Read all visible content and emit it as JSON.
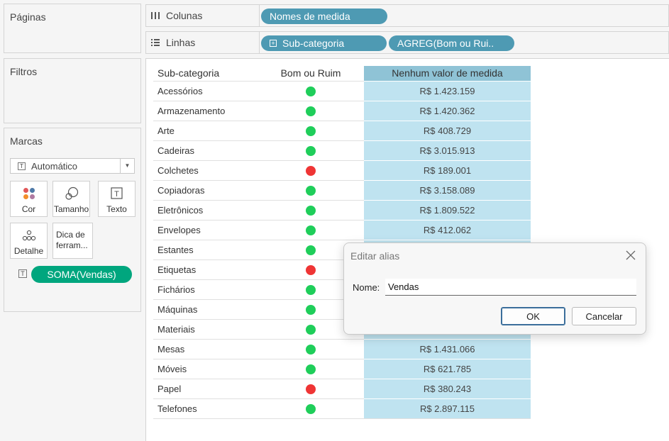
{
  "panels": {
    "pages_title": "Páginas",
    "filters_title": "Filtros",
    "marks_title": "Marcas"
  },
  "shelves": {
    "columns_label": "Colunas",
    "columns_pills": [
      "Nomes de medida"
    ],
    "rows_label": "Linhas",
    "rows_pills": [
      "Sub-categoria",
      "AGREG(Bom ou Rui.."
    ]
  },
  "marks": {
    "mark_type": "Automático",
    "buttons": {
      "color": "Cor",
      "size": "Tamanho",
      "text": "Texto",
      "detail": "Detalhe",
      "tooltip": "Dica de ferram..."
    },
    "measure_pill": "SOMA(Vendas)"
  },
  "colors": {
    "pill_blue": "#4e9ab3",
    "pill_green": "#00a67e",
    "good": "#1fce5a",
    "bad": "#ef3535",
    "value_cell": "#bfe3f0",
    "value_header": "#8fc3d6"
  },
  "table": {
    "headers": [
      "Sub-categoria",
      "Bom ou Ruim",
      "Nenhum valor de medida"
    ],
    "rows": [
      {
        "cat": "Acessórios",
        "status": "good",
        "value": "R$ 1.423.159"
      },
      {
        "cat": "Armazenamento",
        "status": "good",
        "value": "R$ 1.420.362"
      },
      {
        "cat": "Arte",
        "status": "good",
        "value": "R$ 408.729"
      },
      {
        "cat": "Cadeiras",
        "status": "good",
        "value": "R$ 3.015.913"
      },
      {
        "cat": "Colchetes",
        "status": "bad",
        "value": "R$ 189.001"
      },
      {
        "cat": "Copiadoras",
        "status": "good",
        "value": "R$ 3.158.089"
      },
      {
        "cat": "Eletrônicos",
        "status": "good",
        "value": "R$ 1.809.522"
      },
      {
        "cat": "Envelopes",
        "status": "good",
        "value": "R$ 412.062"
      },
      {
        "cat": "Estantes",
        "status": "good",
        "value": ""
      },
      {
        "cat": "Etiquetas",
        "status": "bad",
        "value": ""
      },
      {
        "cat": "Fichários",
        "status": "good",
        "value": ""
      },
      {
        "cat": "Máquinas",
        "status": "good",
        "value": ""
      },
      {
        "cat": "Materiais",
        "status": "good",
        "value": ""
      },
      {
        "cat": "Mesas",
        "status": "good",
        "value": "R$ 1.431.066"
      },
      {
        "cat": "Móveis",
        "status": "good",
        "value": "R$ 621.785"
      },
      {
        "cat": "Papel",
        "status": "bad",
        "value": "R$ 380.243"
      },
      {
        "cat": "Telefones",
        "status": "good",
        "value": "R$ 2.897.115"
      }
    ]
  },
  "dialog": {
    "title": "Editar alias",
    "name_label": "Nome:",
    "name_value": "Vendas",
    "ok_label": "OK",
    "cancel_label": "Cancelar"
  }
}
